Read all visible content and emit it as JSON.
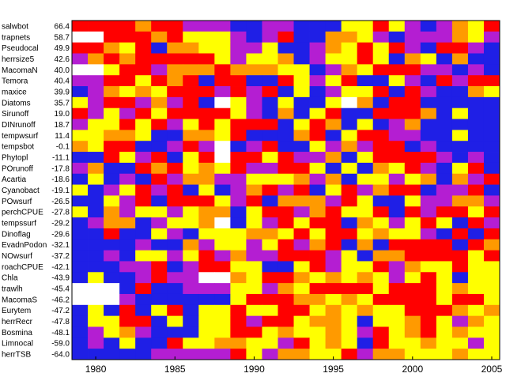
{
  "chart_data": {
    "type": "heatmap",
    "title": "",
    "xlabel": "",
    "ylabel": "",
    "x_years": [
      1979,
      1980,
      1981,
      1982,
      1983,
      1984,
      1985,
      1986,
      1987,
      1988,
      1989,
      1990,
      1991,
      1992,
      1993,
      1994,
      1995,
      1996,
      1997,
      1998,
      1999,
      2000,
      2001,
      2002,
      2003,
      2004,
      2005
    ],
    "x_ticks": [
      1980,
      1985,
      1990,
      1995,
      2000,
      2005
    ],
    "palette": {
      "B": "#1f1fe6",
      "P": "#b41ed2",
      "R": "#ff0000",
      "O": "#ff9a00",
      "Y": "#ffff00",
      "W": "#ffffff"
    },
    "rows": [
      {
        "name": "salwbot",
        "value": "66.4",
        "cells": "RRRRORRPPPBBPPBBBYYRYPBPOYR"
      },
      {
        "name": "trapnets",
        "value": "58.7",
        "cells": "WWRRRORYYYPBPRBBOOYPBPPPOYP"
      },
      {
        "name": "Pseudocal",
        "value": "49.9",
        "cells": "RROYRBOOYYPPYBBPOYRYRPBRRPB"
      },
      {
        "name": "herrsize5",
        "value": "42.6",
        "cells": "PORORRRRRYPYYOBPYYRYBOYBOBB"
      },
      {
        "name": "MacomaN",
        "value": "40.0",
        "cells": "WWYRRPOOOROOOYYBPOYRRRPPBPB"
      },
      {
        "name": "Temora",
        "value": "40.4",
        "cells": "PPRRYRORBRRBBRYPYRBBYPBRPRR"
      },
      {
        "name": "maxice",
        "value": "39.9",
        "cells": "BPOYOYRRRPRPRBYBPYYRBRPBBOY"
      },
      {
        "name": "Diatoms",
        "value": "35.7",
        "cells": "YPRRPOPRBWYPBYBBYWOBRRBBBBB"
      },
      {
        "name": "Sirunoff",
        "value": "19.0",
        "cells": "RPYPRYRRRRYPBOBYRBBRRROBYBB"
      },
      {
        "name": "DINrunoff",
        "value": "18.7",
        "cells": "PYYRYRPYRYRRRBYROBYBPOBBBBB"
      },
      {
        "name": "tempwsurf",
        "value": "11.4",
        "cells": "YYOOYBBOOYRBBBORBYRRPPBBYBB"
      },
      {
        "name": "tempsbot",
        "value": "-0.1",
        "cells": "OYRRBBPRPWBPRBBYPOPRRBPBBBB"
      },
      {
        "name": "Phytopl",
        "value": "-11.1",
        "cells": "BBRYPRBYRWRRYRPPOBYRRRRPBPB"
      },
      {
        "name": "POrunoff",
        "value": "-17.8",
        "cells": "POBBRORYOYRPPRRYBYBOYRPBYRB"
      },
      {
        "name": "Acartia",
        "value": "-18.6",
        "cells": "BYBPBRPOOPPYYYOPOBYYPYOBOPR"
      },
      {
        "name": "Cyanobact",
        "value": "-19.1",
        "cells": "YBPYRPRBYBPORPRBYRPORRBPPRB"
      },
      {
        "name": "POwsurf",
        "value": "-26.5",
        "cells": "BBYPRBRRRYPRBOOOPRYBBYPPOOP"
      },
      {
        "name": "perchCPUE",
        "value": "-27.8",
        "cells": "YBOPYYPYOOBYRRPORYYRBRPRRYR"
      },
      {
        "name": "tempssurf",
        "value": "-29.2",
        "cells": "BPOOBPYYOWBYPRYRRBOYPYRYBRP"
      },
      {
        "name": "Dinoflag",
        "value": "-29.6",
        "cells": "BBRBBYPBYYYOOYRYRRYOYYPBRBR"
      },
      {
        "name": "EvadnPodon",
        "value": "-32.1",
        "cells": "BBBBPBBOPYYPYRPORBOBRRRRBRO"
      },
      {
        "name": "NOwsurf",
        "value": "-37.2",
        "cells": "BBPBYYPYRPOPPRRRPYBOORRRRYR"
      },
      {
        "name": "roachCPUE",
        "value": "-42.1",
        "cells": "BBBPPRBPRRYYBBYRPYYRPOYYRYY"
      },
      {
        "name": "Chla",
        "value": "-43.9",
        "cells": "BYBBPRPPWWOYRROYOYOYPYRYBYY"
      },
      {
        "name": "trawlh",
        "value": "-45.4",
        "cells": "WWWBRBBPPPYYPOYRRRRYRRRYOYY"
      },
      {
        "name": "MacomaS",
        "value": "-46.2",
        "cells": "WWWPBBBBBBYRRROOYOYRRRRYRRY"
      },
      {
        "name": "Eurytem",
        "value": "-47.2",
        "cells": "BYBRBYRBYYRYYRRYOYOYYRRROYO"
      },
      {
        "name": "herrRecr",
        "value": "-47.8",
        "cells": "BYYRRBYBYYRPRRYOOYBYYORYPOY"
      },
      {
        "name": "Bosmina",
        "value": "-48.1",
        "cells": "BPYOPBBBYYRRYOYYOYPRYORYOYY"
      },
      {
        "name": "Limnocal",
        "value": "-59.0",
        "cells": "BPBYBBRYYOOYYPRYOYBRYYOYYPY"
      },
      {
        "name": "herrTSB",
        "value": "-64.0",
        "cells": "BBBBBPPPPPRYPOOYYRPOOYYYOYY"
      }
    ]
  }
}
